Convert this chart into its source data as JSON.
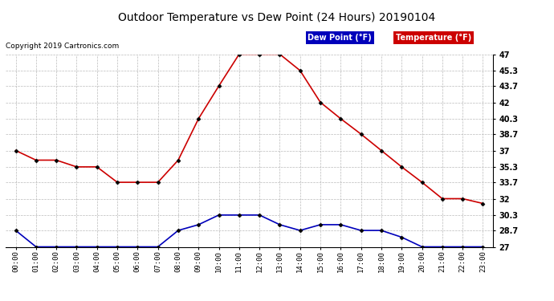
{
  "title": "Outdoor Temperature vs Dew Point (24 Hours) 20190104",
  "copyright_text": "Copyright 2019 Cartronics.com",
  "legend_dew": "Dew Point (°F)",
  "legend_temp": "Temperature (°F)",
  "hours": [
    "00:00",
    "01:00",
    "02:00",
    "03:00",
    "04:00",
    "05:00",
    "06:00",
    "07:00",
    "08:00",
    "09:00",
    "10:00",
    "11:00",
    "12:00",
    "13:00",
    "14:00",
    "15:00",
    "16:00",
    "17:00",
    "18:00",
    "19:00",
    "20:00",
    "21:00",
    "22:00",
    "23:00"
  ],
  "temperature": [
    37.0,
    36.0,
    36.0,
    35.3,
    35.3,
    33.7,
    33.7,
    33.7,
    36.0,
    40.3,
    43.7,
    47.0,
    47.0,
    47.0,
    45.3,
    42.0,
    40.3,
    38.7,
    37.0,
    35.3,
    33.7,
    32.0,
    32.0,
    31.5
  ],
  "dew_point": [
    28.7,
    27.0,
    27.0,
    27.0,
    27.0,
    27.0,
    27.0,
    27.0,
    28.7,
    29.3,
    30.3,
    30.3,
    30.3,
    29.3,
    28.7,
    29.3,
    29.3,
    28.7,
    28.7,
    28.0,
    27.0,
    27.0,
    27.0,
    27.0
  ],
  "ylim_min": 27.0,
  "ylim_max": 47.0,
  "yticks": [
    27.0,
    28.7,
    30.3,
    32.0,
    33.7,
    35.3,
    37.0,
    38.7,
    40.3,
    42.0,
    43.7,
    45.3,
    47.0
  ],
  "temp_color": "#cc0000",
  "dew_color": "#0000bb",
  "bg_color": "#ffffff",
  "grid_color": "#bbbbbb",
  "marker": "D",
  "marker_size": 2.5,
  "line_width": 1.2
}
